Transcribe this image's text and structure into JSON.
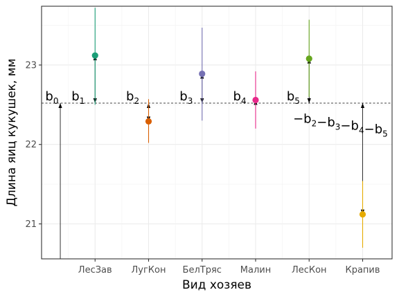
{
  "chart_data": {
    "type": "scatter",
    "xlabel": "Вид хозяев",
    "ylabel": "Длина яиц кукушек, мм",
    "categories": [
      "ЛесЗав",
      "ЛугКон",
      "БелТряс",
      "Малин",
      "ЛесКон",
      "Крапив"
    ],
    "ylim": [
      20.56,
      23.74
    ],
    "yticks": [
      21,
      22,
      23
    ],
    "grid": true,
    "points": [
      {
        "category": "ЛесЗав",
        "mean": 23.12,
        "lower": 22.5,
        "upper": 23.72,
        "color": "#1b9e77"
      },
      {
        "category": "ЛугКон",
        "mean": 22.29,
        "lower": 22.02,
        "upper": 22.57,
        "color": "#d95f02"
      },
      {
        "category": "БелТряс",
        "mean": 22.89,
        "lower": 22.3,
        "upper": 23.47,
        "color": "#7570b3"
      },
      {
        "category": "Малин",
        "mean": 22.56,
        "lower": 22.2,
        "upper": 22.92,
        "color": "#e7298a"
      },
      {
        "category": "ЛесКон",
        "mean": 23.08,
        "lower": 22.6,
        "upper": 23.57,
        "color": "#66a61e"
      },
      {
        "category": "Крапив",
        "mean": 21.12,
        "lower": 20.7,
        "upper": 21.54,
        "color": "#e6ab02"
      }
    ],
    "reference_line": {
      "y": 22.52,
      "style": "dashed"
    },
    "coefficient_arrows": [
      {
        "x_position": 0.35,
        "from": 20.56,
        "to": 22.52
      },
      {
        "x_position": 1.0,
        "from": 22.52,
        "to": 23.12
      },
      {
        "x_position": 2.0,
        "from": 22.52,
        "to": 22.29
      },
      {
        "x_position": 3.0,
        "from": 22.52,
        "to": 22.89
      },
      {
        "x_position": 4.0,
        "from": 22.52,
        "to": 22.56
      },
      {
        "x_position": 5.0,
        "from": 22.52,
        "to": 23.08
      },
      {
        "x_position": 6.0,
        "from": 22.52,
        "to": 21.12
      }
    ],
    "coefficient_labels": [
      {
        "base": "b",
        "sub": "0",
        "x_position": 0.07,
        "y": 22.52
      },
      {
        "base": "b",
        "sub": "1",
        "x_position": 0.56,
        "y": 22.52
      },
      {
        "base": "b",
        "sub": "2",
        "x_position": 1.58,
        "y": 22.52
      },
      {
        "base": "b",
        "sub": "3",
        "x_position": 2.58,
        "y": 22.52
      },
      {
        "base": "b",
        "sub": "4",
        "x_position": 3.58,
        "y": 22.52
      },
      {
        "base": "b",
        "sub": "5",
        "x_position": 4.58,
        "y": 22.52
      }
    ],
    "formula_label": {
      "terms": [
        {
          "prefix": "−",
          "base": "b",
          "sub": "2"
        },
        {
          "prefix": "−",
          "base": "b",
          "sub": "3"
        },
        {
          "prefix": "−",
          "base": "b",
          "sub": "4"
        },
        {
          "prefix": "−",
          "base": "b",
          "sub": "5"
        }
      ],
      "x_position": 4.7,
      "y": 22.36
    }
  }
}
